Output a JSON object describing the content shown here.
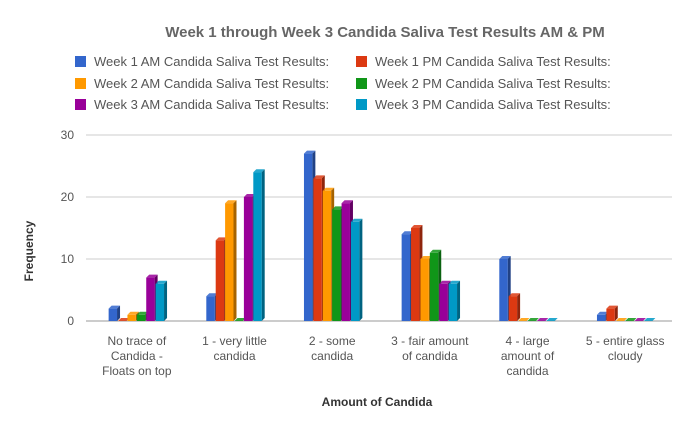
{
  "chart_data": {
    "type": "bar",
    "title": "Week 1 through Week 3 Candida Saliva Test Results AM & PM",
    "xlabel": "Amount of Candida",
    "ylabel": "Frequency",
    "ylim": [
      0,
      30
    ],
    "yticks": [
      "0",
      "10",
      "20",
      "30"
    ],
    "grid": true,
    "legend_position": "top",
    "categories": [
      [
        "No trace of",
        "Candida -",
        "Floats on top"
      ],
      [
        "1 - very little",
        "candida"
      ],
      [
        "2 - some",
        "candida"
      ],
      [
        "3 - fair amount",
        "of candida"
      ],
      [
        "4 - large",
        "amount of",
        "candida"
      ],
      [
        "5 - entire glass",
        "cloudy"
      ]
    ],
    "series": [
      {
        "name": "Week 1 AM Candida Saliva Test Results:",
        "color": "#3366cc",
        "values": [
          2,
          4,
          27,
          14,
          10,
          1
        ]
      },
      {
        "name": "Week 1 PM Candida Saliva Test Results:",
        "color": "#dc3912",
        "values": [
          0,
          13,
          23,
          15,
          4,
          2
        ]
      },
      {
        "name": "Week 2 AM Candida Saliva Test Results:",
        "color": "#ff9900",
        "values": [
          1,
          19,
          21,
          10,
          0,
          0
        ]
      },
      {
        "name": "Week 2 PM Candida Saliva Test Results:",
        "color": "#109618",
        "values": [
          1,
          0,
          18,
          11,
          0,
          0
        ]
      },
      {
        "name": "Week 3 AM Candida Saliva Test Results:",
        "color": "#990099",
        "values": [
          7,
          20,
          19,
          6,
          0,
          0
        ]
      },
      {
        "name": "Week 3 PM Candida Saliva Test Results:",
        "color": "#0099c6",
        "values": [
          6,
          24,
          16,
          6,
          0,
          0
        ]
      }
    ]
  }
}
